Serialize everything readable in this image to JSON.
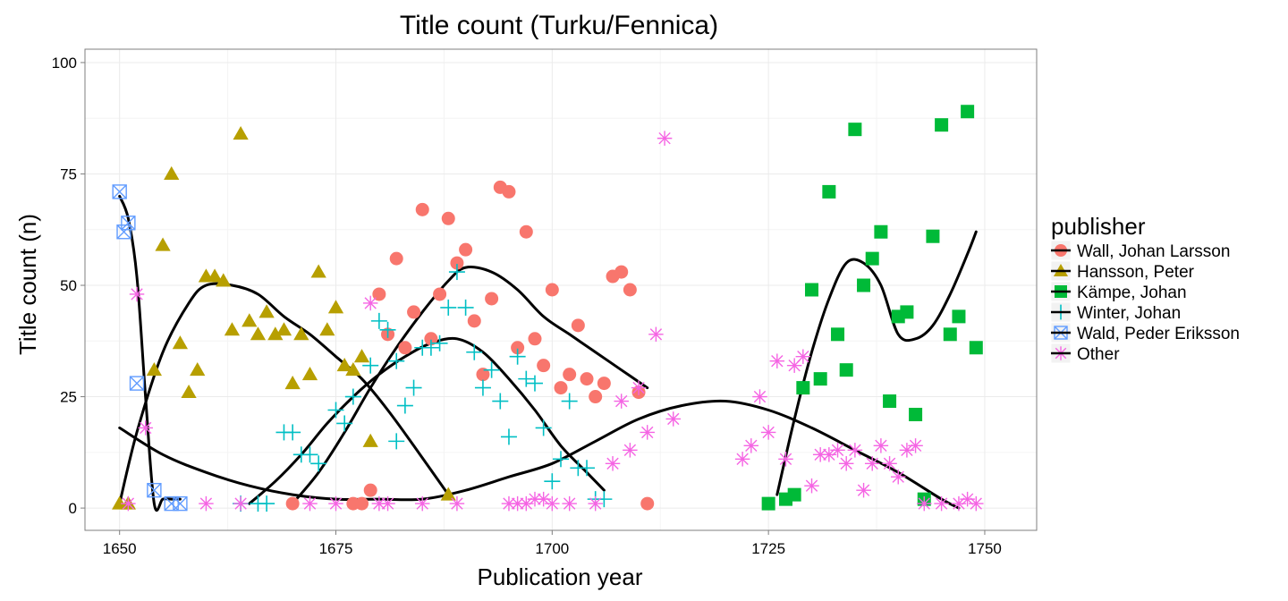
{
  "chart_data": {
    "type": "scatter",
    "title": "Title count (Turku/Fennica)",
    "xlabel": "Publication year",
    "ylabel": "Title count (n)",
    "xlim": [
      1646,
      1756
    ],
    "ylim": [
      -5,
      103
    ],
    "x_ticks": [
      1650,
      1675,
      1700,
      1725,
      1750
    ],
    "y_ticks": [
      0,
      25,
      50,
      75,
      100
    ],
    "grid": true,
    "legend": {
      "title": "publisher",
      "position": "right"
    },
    "series": [
      {
        "name": "Wall, Johan Larsson",
        "marker": "circle",
        "color": "#F8766D",
        "points": [
          [
            1670,
            1
          ],
          [
            1677,
            1
          ],
          [
            1678,
            1
          ],
          [
            1679,
            4
          ],
          [
            1680,
            48
          ],
          [
            1681,
            39
          ],
          [
            1682,
            56
          ],
          [
            1683,
            36
          ],
          [
            1684,
            44
          ],
          [
            1685,
            67
          ],
          [
            1686,
            38
          ],
          [
            1687,
            48
          ],
          [
            1688,
            65
          ],
          [
            1689,
            55
          ],
          [
            1690,
            58
          ],
          [
            1691,
            42
          ],
          [
            1692,
            30
          ],
          [
            1693,
            47
          ],
          [
            1694,
            72
          ],
          [
            1695,
            71
          ],
          [
            1696,
            36
          ],
          [
            1697,
            62
          ],
          [
            1698,
            38
          ],
          [
            1699,
            32
          ],
          [
            1700,
            49
          ],
          [
            1701,
            27
          ],
          [
            1702,
            30
          ],
          [
            1703,
            41
          ],
          [
            1704,
            29
          ],
          [
            1705,
            25
          ],
          [
            1706,
            28
          ],
          [
            1707,
            52
          ],
          [
            1708,
            53
          ],
          [
            1709,
            49
          ],
          [
            1710,
            26
          ],
          [
            1711,
            1
          ]
        ],
        "smooth": [
          [
            1670,
            1
          ],
          [
            1673,
            8
          ],
          [
            1676,
            17
          ],
          [
            1679,
            27
          ],
          [
            1682,
            36
          ],
          [
            1685,
            44
          ],
          [
            1688,
            51
          ],
          [
            1690,
            54
          ],
          [
            1693,
            53
          ],
          [
            1696,
            49
          ],
          [
            1699,
            43
          ],
          [
            1702,
            39
          ],
          [
            1705,
            35
          ],
          [
            1708,
            31
          ],
          [
            1711,
            27
          ]
        ]
      },
      {
        "name": "Hansson, Peter",
        "marker": "triangle",
        "color": "#B79F00",
        "points": [
          [
            1650,
            1
          ],
          [
            1651,
            1
          ],
          [
            1654,
            31
          ],
          [
            1655,
            59
          ],
          [
            1656,
            75
          ],
          [
            1657,
            37
          ],
          [
            1658,
            26
          ],
          [
            1659,
            31
          ],
          [
            1660,
            52
          ],
          [
            1661,
            52
          ],
          [
            1662,
            51
          ],
          [
            1663,
            40
          ],
          [
            1664,
            84
          ],
          [
            1665,
            42
          ],
          [
            1666,
            39
          ],
          [
            1667,
            44
          ],
          [
            1668,
            39
          ],
          [
            1669,
            40
          ],
          [
            1670,
            28
          ],
          [
            1671,
            39
          ],
          [
            1672,
            30
          ],
          [
            1673,
            53
          ],
          [
            1674,
            40
          ],
          [
            1675,
            45
          ],
          [
            1676,
            32
          ],
          [
            1677,
            31
          ],
          [
            1678,
            34
          ],
          [
            1679,
            15
          ],
          [
            1688,
            3
          ]
        ],
        "smooth": [
          [
            1650,
            1
          ],
          [
            1652,
            17
          ],
          [
            1655,
            35
          ],
          [
            1658,
            46
          ],
          [
            1660,
            50
          ],
          [
            1663,
            50
          ],
          [
            1666,
            48
          ],
          [
            1669,
            43
          ],
          [
            1672,
            39
          ],
          [
            1675,
            34
          ],
          [
            1678,
            29
          ],
          [
            1681,
            22
          ],
          [
            1684,
            14
          ],
          [
            1688,
            3
          ]
        ]
      },
      {
        "name": "Kämpe, Johan",
        "marker": "square",
        "color": "#00BA38",
        "points": [
          [
            1725,
            1
          ],
          [
            1727,
            2
          ],
          [
            1728,
            3
          ],
          [
            1729,
            27
          ],
          [
            1730,
            49
          ],
          [
            1731,
            29
          ],
          [
            1732,
            71
          ],
          [
            1733,
            39
          ],
          [
            1734,
            31
          ],
          [
            1735,
            85
          ],
          [
            1736,
            50
          ],
          [
            1737,
            56
          ],
          [
            1738,
            62
          ],
          [
            1739,
            24
          ],
          [
            1740,
            43
          ],
          [
            1741,
            44
          ],
          [
            1742,
            21
          ],
          [
            1743,
            2
          ],
          [
            1744,
            61
          ],
          [
            1745,
            86
          ],
          [
            1746,
            39
          ],
          [
            1747,
            43
          ],
          [
            1748,
            89
          ],
          [
            1749,
            36
          ]
        ],
        "smooth": [
          [
            1726,
            3
          ],
          [
            1728,
            20
          ],
          [
            1730,
            35
          ],
          [
            1732,
            47
          ],
          [
            1734,
            55
          ],
          [
            1736,
            55
          ],
          [
            1738,
            50
          ],
          [
            1740,
            39
          ],
          [
            1742,
            38
          ],
          [
            1744,
            41
          ],
          [
            1746,
            48
          ],
          [
            1748,
            57
          ],
          [
            1749,
            62
          ]
        ]
      },
      {
        "name": "Winter, Johan",
        "marker": "plus",
        "color": "#00BFC4",
        "points": [
          [
            1664,
            1
          ],
          [
            1666,
            1
          ],
          [
            1667,
            1
          ],
          [
            1669,
            17
          ],
          [
            1670,
            17
          ],
          [
            1671,
            12
          ],
          [
            1672,
            12
          ],
          [
            1673,
            10
          ],
          [
            1675,
            22
          ],
          [
            1676,
            19
          ],
          [
            1677,
            25
          ],
          [
            1679,
            32
          ],
          [
            1680,
            42
          ],
          [
            1681,
            40
          ],
          [
            1682,
            33
          ],
          [
            1682,
            15
          ],
          [
            1683,
            23
          ],
          [
            1684,
            27
          ],
          [
            1685,
            36
          ],
          [
            1686,
            36
          ],
          [
            1687,
            37
          ],
          [
            1688,
            45
          ],
          [
            1689,
            53
          ],
          [
            1690,
            45
          ],
          [
            1691,
            35
          ],
          [
            1692,
            27
          ],
          [
            1693,
            31
          ],
          [
            1694,
            24
          ],
          [
            1695,
            16
          ],
          [
            1696,
            34
          ],
          [
            1697,
            29
          ],
          [
            1698,
            28
          ],
          [
            1699,
            18
          ],
          [
            1700,
            6
          ],
          [
            1701,
            11
          ],
          [
            1702,
            24
          ],
          [
            1703,
            9
          ],
          [
            1704,
            9
          ],
          [
            1705,
            2
          ],
          [
            1706,
            2
          ]
        ],
        "smooth": [
          [
            1665,
            1
          ],
          [
            1668,
            6
          ],
          [
            1671,
            12
          ],
          [
            1674,
            19
          ],
          [
            1677,
            25
          ],
          [
            1680,
            30
          ],
          [
            1683,
            34
          ],
          [
            1686,
            37
          ],
          [
            1689,
            38
          ],
          [
            1692,
            35
          ],
          [
            1695,
            29
          ],
          [
            1698,
            22
          ],
          [
            1701,
            14
          ],
          [
            1704,
            8
          ],
          [
            1706,
            4
          ]
        ]
      },
      {
        "name": "Wald, Peder Eriksson",
        "marker": "boxed-x",
        "color": "#619CFF",
        "points": [
          [
            1650,
            71
          ],
          [
            1650.5,
            62
          ],
          [
            1651,
            64
          ],
          [
            1652,
            28
          ],
          [
            1654,
            4
          ],
          [
            1656,
            1
          ],
          [
            1657,
            1
          ]
        ],
        "smooth": [
          [
            1650,
            70
          ],
          [
            1651,
            65
          ],
          [
            1652,
            52
          ],
          [
            1653,
            25
          ],
          [
            1654,
            1
          ],
          [
            1655,
            2
          ],
          [
            1656,
            2
          ],
          [
            1657,
            2
          ]
        ]
      },
      {
        "name": "Other",
        "marker": "star",
        "color": "#F564E3",
        "points": [
          [
            1651,
            1
          ],
          [
            1652,
            48
          ],
          [
            1653,
            18
          ],
          [
            1660,
            1
          ],
          [
            1664,
            1
          ],
          [
            1672,
            1
          ],
          [
            1675,
            1
          ],
          [
            1679,
            46
          ],
          [
            1680,
            1
          ],
          [
            1681,
            1
          ],
          [
            1685,
            1
          ],
          [
            1689,
            1
          ],
          [
            1695,
            1
          ],
          [
            1696,
            1
          ],
          [
            1697,
            1
          ],
          [
            1698,
            2
          ],
          [
            1699,
            2
          ],
          [
            1700,
            1
          ],
          [
            1702,
            1
          ],
          [
            1705,
            1
          ],
          [
            1707,
            10
          ],
          [
            1708,
            24
          ],
          [
            1709,
            13
          ],
          [
            1710,
            27
          ],
          [
            1711,
            17
          ],
          [
            1712,
            39
          ],
          [
            1713,
            83
          ],
          [
            1714,
            20
          ],
          [
            1722,
            11
          ],
          [
            1723,
            14
          ],
          [
            1724,
            25
          ],
          [
            1725,
            17
          ],
          [
            1726,
            33
          ],
          [
            1727,
            11
          ],
          [
            1728,
            32
          ],
          [
            1729,
            34
          ],
          [
            1730,
            5
          ],
          [
            1731,
            12
          ],
          [
            1732,
            12
          ],
          [
            1733,
            13
          ],
          [
            1734,
            10
          ],
          [
            1735,
            13
          ],
          [
            1736,
            4
          ],
          [
            1737,
            10
          ],
          [
            1738,
            14
          ],
          [
            1739,
            10
          ],
          [
            1740,
            7
          ],
          [
            1741,
            13
          ],
          [
            1742,
            14
          ],
          [
            1743,
            1
          ],
          [
            1745,
            1
          ],
          [
            1747,
            1
          ],
          [
            1748,
            2
          ],
          [
            1749,
            1
          ]
        ],
        "smooth": [
          [
            1650,
            18
          ],
          [
            1655,
            12
          ],
          [
            1660,
            8
          ],
          [
            1665,
            5
          ],
          [
            1670,
            3
          ],
          [
            1675,
            2
          ],
          [
            1680,
            2
          ],
          [
            1685,
            2
          ],
          [
            1690,
            4
          ],
          [
            1695,
            7
          ],
          [
            1700,
            10
          ],
          [
            1705,
            15
          ],
          [
            1710,
            20
          ],
          [
            1715,
            23
          ],
          [
            1720,
            24
          ],
          [
            1725,
            22
          ],
          [
            1730,
            18
          ],
          [
            1735,
            13
          ],
          [
            1740,
            8
          ],
          [
            1745,
            2
          ],
          [
            1747,
            0
          ]
        ]
      }
    ]
  }
}
